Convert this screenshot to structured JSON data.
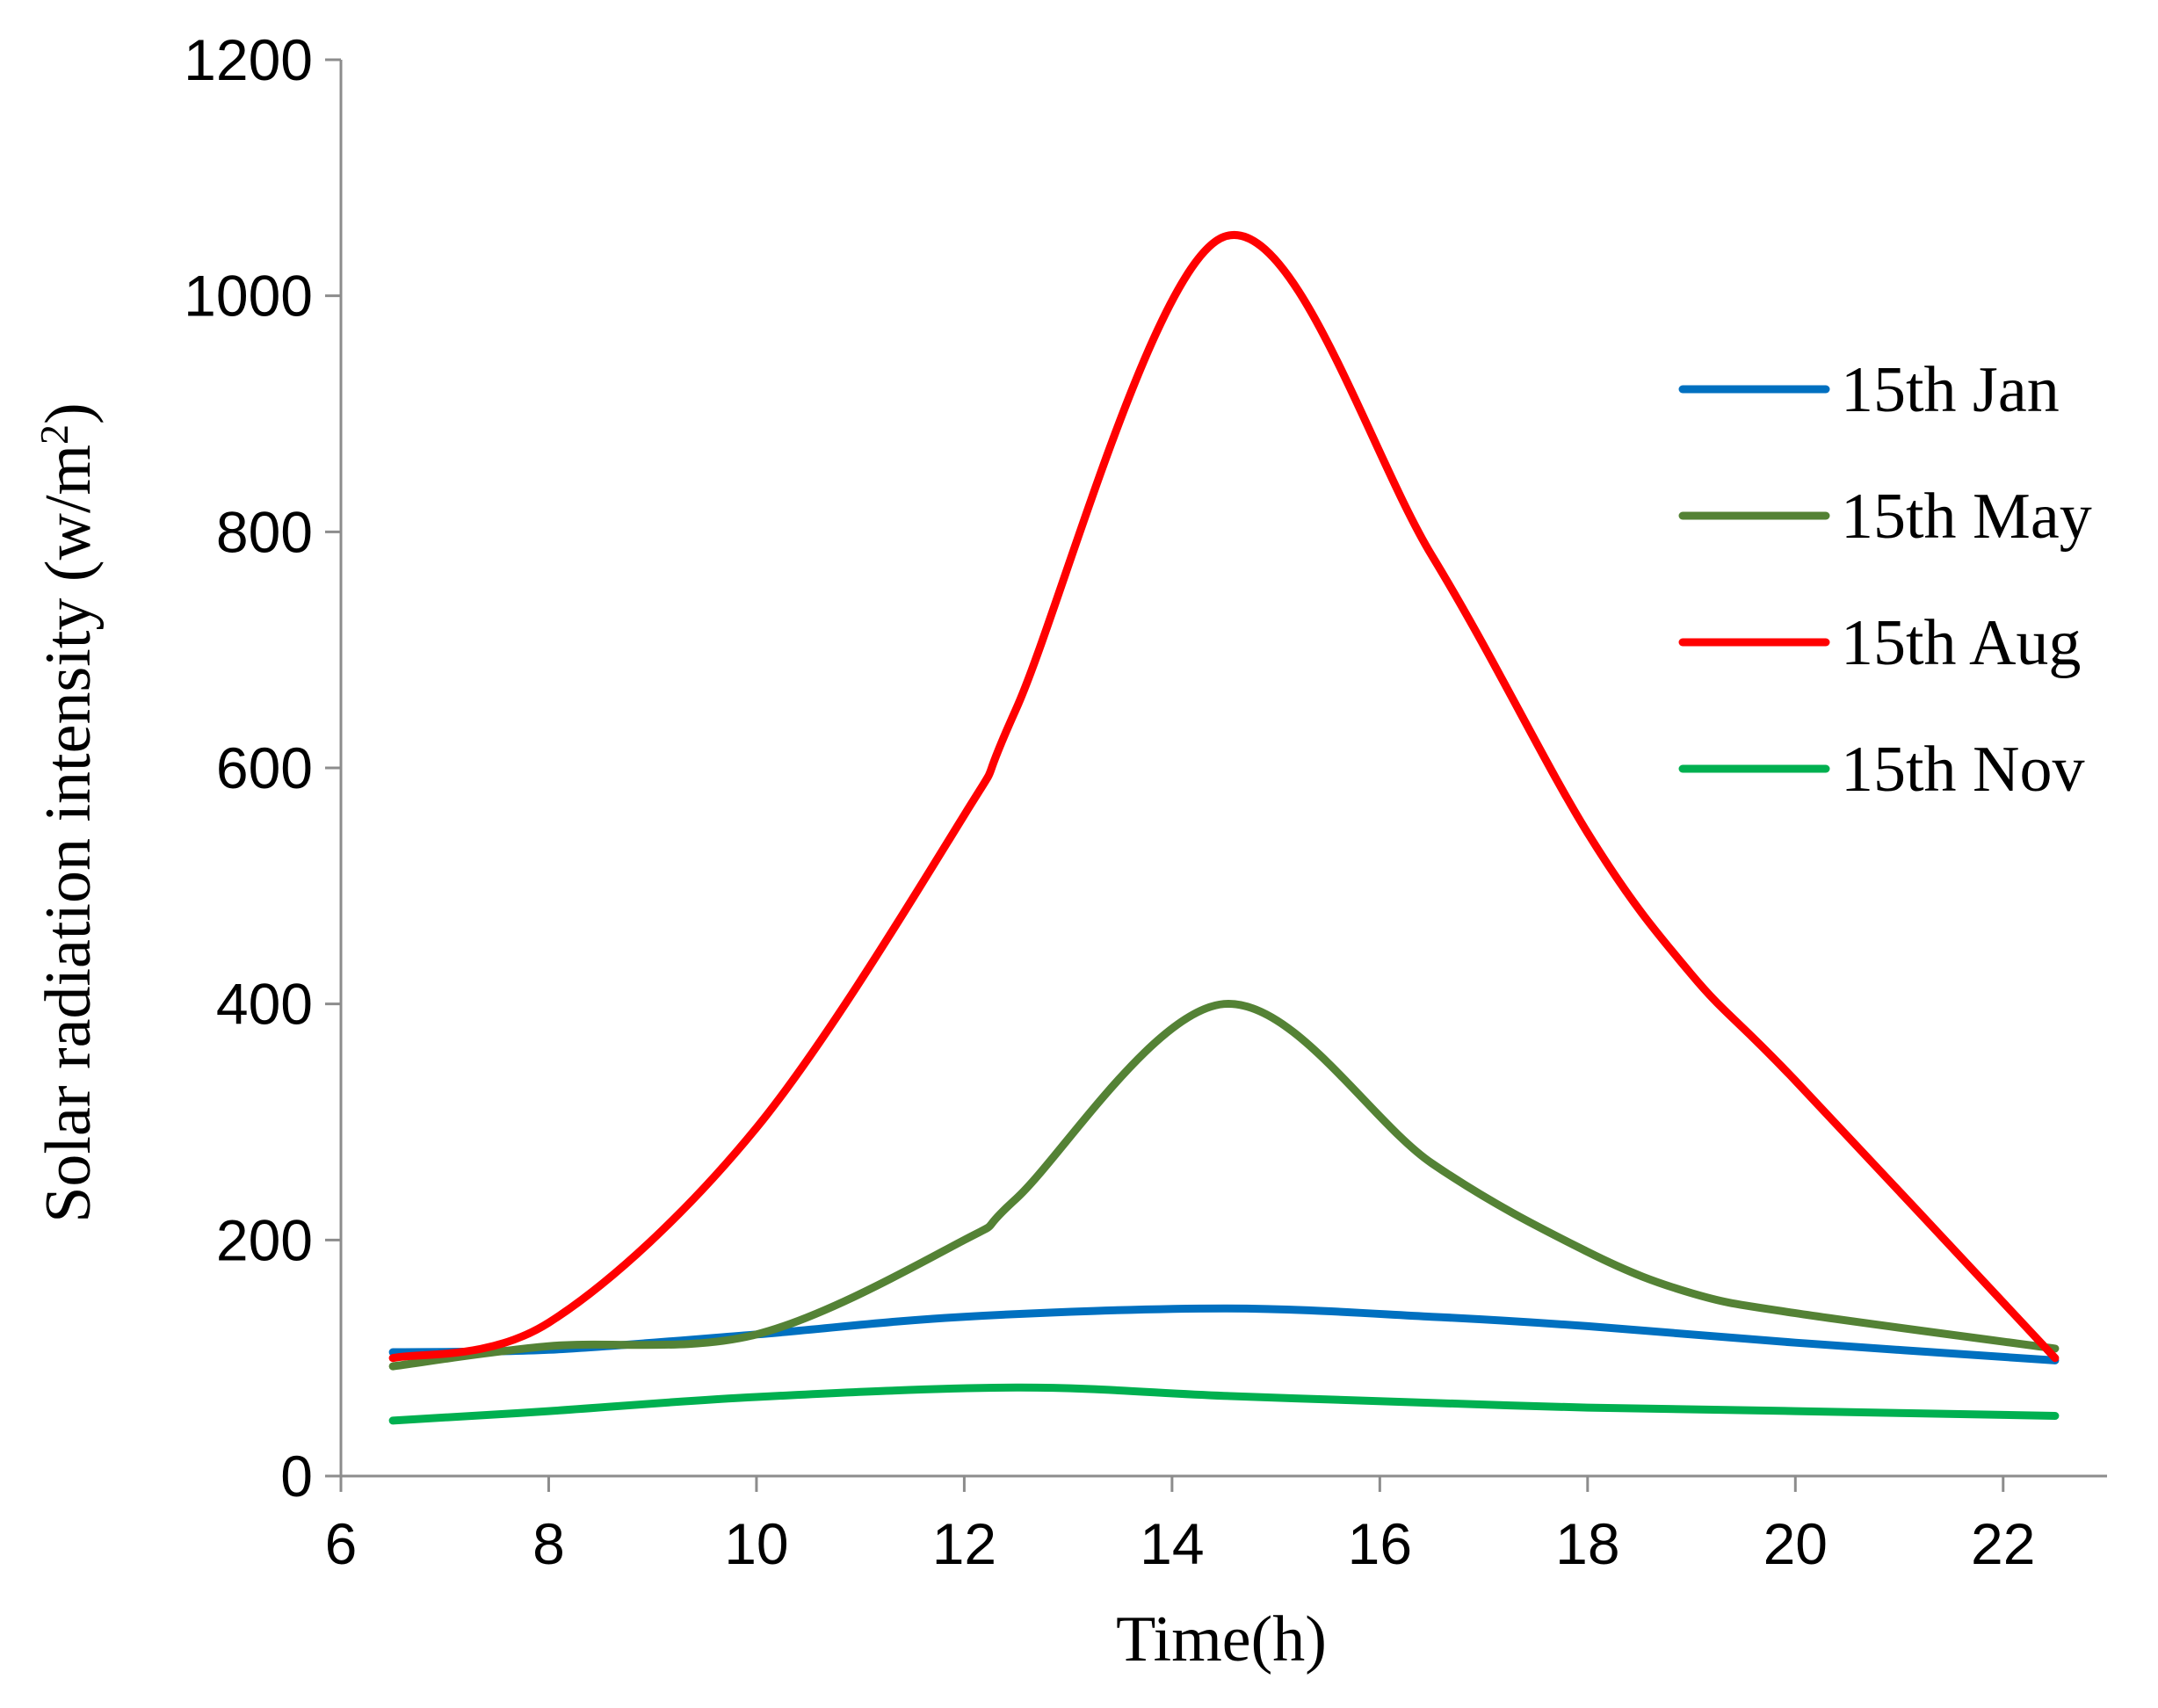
{
  "chart_data": {
    "type": "line",
    "title": "",
    "xlabel": "Time(h)",
    "ylabel_main": "Solar radiation intensity (w/m",
    "ylabel_sup": "2",
    "ylabel_end": ")",
    "xlim": [
      6,
      23
    ],
    "ylim": [
      0,
      1200
    ],
    "xticks": [
      6,
      8,
      10,
      12,
      14,
      16,
      18,
      20,
      22
    ],
    "yticks": [
      0,
      200,
      400,
      600,
      800,
      1000,
      1200
    ],
    "grid": false,
    "legend_position": "right",
    "series": [
      {
        "name": "15th Jan",
        "color": "#0070c0",
        "points": [
          [
            6.5,
            105
          ],
          [
            8,
            107
          ],
          [
            10,
            120
          ],
          [
            12,
            135
          ],
          [
            14.5,
            142
          ],
          [
            16.5,
            135
          ],
          [
            18,
            127
          ],
          [
            20,
            113
          ],
          [
            22.5,
            98
          ]
        ]
      },
      {
        "name": "15th May",
        "color": "#548235",
        "points": [
          [
            6.5,
            93
          ],
          [
            8,
            110
          ],
          [
            10,
            120
          ],
          [
            12,
            200
          ],
          [
            12.5,
            235
          ],
          [
            14.5,
            400
          ],
          [
            16.5,
            265
          ],
          [
            18,
            190
          ],
          [
            19,
            155
          ],
          [
            20,
            138
          ],
          [
            22.5,
            108
          ]
        ]
      },
      {
        "name": "15th Aug",
        "color": "#ff0000",
        "points": [
          [
            6.5,
            100
          ],
          [
            8,
            130
          ],
          [
            10,
            295
          ],
          [
            12,
            560
          ],
          [
            12.5,
            650
          ],
          [
            14.5,
            1050
          ],
          [
            16.5,
            780
          ],
          [
            18,
            545
          ],
          [
            19,
            425
          ],
          [
            20,
            335
          ],
          [
            22.5,
            100
          ]
        ]
      },
      {
        "name": "15th Nov",
        "color": "#00b050",
        "points": [
          [
            6.5,
            47
          ],
          [
            8,
            55
          ],
          [
            10,
            67
          ],
          [
            12.5,
            75
          ],
          [
            14.5,
            68
          ],
          [
            16.5,
            62
          ],
          [
            18,
            58
          ],
          [
            20,
            55
          ],
          [
            22.5,
            51
          ]
        ]
      }
    ]
  }
}
